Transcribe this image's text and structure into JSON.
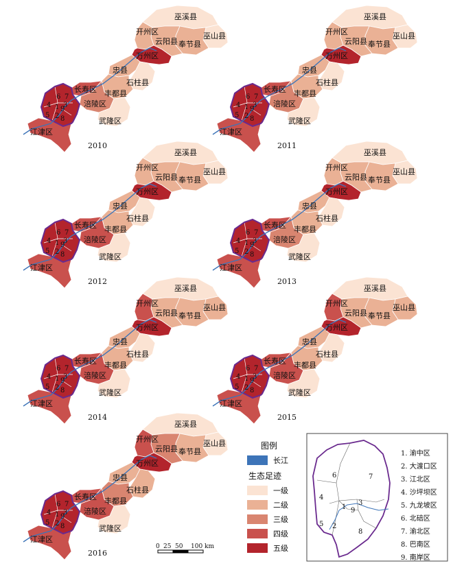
{
  "colors": {
    "level1": "#fbe3d3",
    "level2": "#eab195",
    "level3": "#d98570",
    "level4": "#c9514d",
    "level5": "#b3242c",
    "river": "#3d74b8",
    "core_outline": "#6a2a8e"
  },
  "place_names": {
    "wuxi": "巫溪县",
    "kaizhou": "开州区",
    "yunyang": "云阳县",
    "wushan": "巫山县",
    "fengjie": "奉节县",
    "wanzhou": "万州区",
    "zhongxian": "忠县",
    "shizhu": "石柱县",
    "changshou": "长寿区",
    "fengdu": "丰都县",
    "fuling": "涪陵区",
    "wulong": "武隆区",
    "jiangjin": "江津区"
  },
  "district_numbers": [
    "1",
    "2",
    "3",
    "4",
    "5",
    "6",
    "7",
    "8",
    "9"
  ],
  "panels": [
    {
      "year": "2010",
      "levels": {
        "wuxi": 1,
        "kaizhou": 2,
        "yunyang": 2,
        "wushan": 1,
        "fengjie": 2,
        "wanzhou": 5,
        "zhongxian": 2,
        "shizhu": 1,
        "changshou": 4,
        "fengdu": 2,
        "fuling": 3,
        "wulong": 1,
        "jiangjin": 4,
        "core": 5
      }
    },
    {
      "year": "2011",
      "levels": {
        "wuxi": 1,
        "kaizhou": 2,
        "yunyang": 2,
        "wushan": 1,
        "fengjie": 2,
        "wanzhou": 5,
        "zhongxian": 2,
        "shizhu": 1,
        "changshou": 4,
        "fengdu": 2,
        "fuling": 3,
        "wulong": 1,
        "jiangjin": 4,
        "core": 5
      }
    },
    {
      "year": "2012",
      "levels": {
        "wuxi": 1,
        "kaizhou": 2,
        "yunyang": 2,
        "wushan": 1,
        "fengjie": 2,
        "wanzhou": 5,
        "zhongxian": 2,
        "shizhu": 1,
        "changshou": 4,
        "fengdu": 2,
        "fuling": 4,
        "wulong": 1,
        "jiangjin": 4,
        "core": 5
      }
    },
    {
      "year": "2013",
      "levels": {
        "wuxi": 1,
        "kaizhou": 2,
        "yunyang": 2,
        "wushan": 1,
        "fengjie": 2,
        "wanzhou": 5,
        "zhongxian": 2,
        "shizhu": 1,
        "changshou": 4,
        "fengdu": 2,
        "fuling": 3,
        "wulong": 1,
        "jiangjin": 4,
        "core": 5
      }
    },
    {
      "year": "2014",
      "levels": {
        "wuxi": 1,
        "kaizhou": 4,
        "yunyang": 2,
        "wushan": 2,
        "fengjie": 2,
        "wanzhou": 5,
        "zhongxian": 2,
        "shizhu": 1,
        "changshou": 4,
        "fengdu": 2,
        "fuling": 4,
        "wulong": 1,
        "jiangjin": 4,
        "core": 5
      }
    },
    {
      "year": "2015",
      "levels": {
        "wuxi": 1,
        "kaizhou": 4,
        "yunyang": 2,
        "wushan": 2,
        "fengjie": 2,
        "wanzhou": 5,
        "zhongxian": 2,
        "shizhu": 1,
        "changshou": 4,
        "fengdu": 2,
        "fuling": 4,
        "wulong": 1,
        "jiangjin": 4,
        "core": 5
      }
    },
    {
      "year": "2016",
      "levels": {
        "wuxi": 1,
        "kaizhou": 4,
        "yunyang": 3,
        "wushan": 1,
        "fengjie": 2,
        "wanzhou": 5,
        "zhongxian": 2,
        "shizhu": 2,
        "changshou": 4,
        "fengdu": 3,
        "fuling": 4,
        "wulong": 1,
        "jiangjin": 4,
        "core": 5
      }
    }
  ],
  "legend": {
    "title": "图例",
    "river_label": "长江",
    "footprint_title": "生态足迹",
    "levels": [
      "一级",
      "二级",
      "三级",
      "四级",
      "五级"
    ]
  },
  "scale_bar": {
    "ticks": [
      "0",
      "25",
      "50",
      "100 km"
    ]
  },
  "inset": {
    "numbers": [
      "1",
      "2",
      "3",
      "4",
      "5",
      "6",
      "7",
      "8",
      "9"
    ],
    "items": [
      "1. 渝中区",
      "2. 大渡口区",
      "3. 江北区",
      "4. 沙坪坝区",
      "5. 九龙坡区",
      "6. 北碚区",
      "7. 渝北区",
      "8. 巴南区",
      "9. 南岸区"
    ]
  }
}
